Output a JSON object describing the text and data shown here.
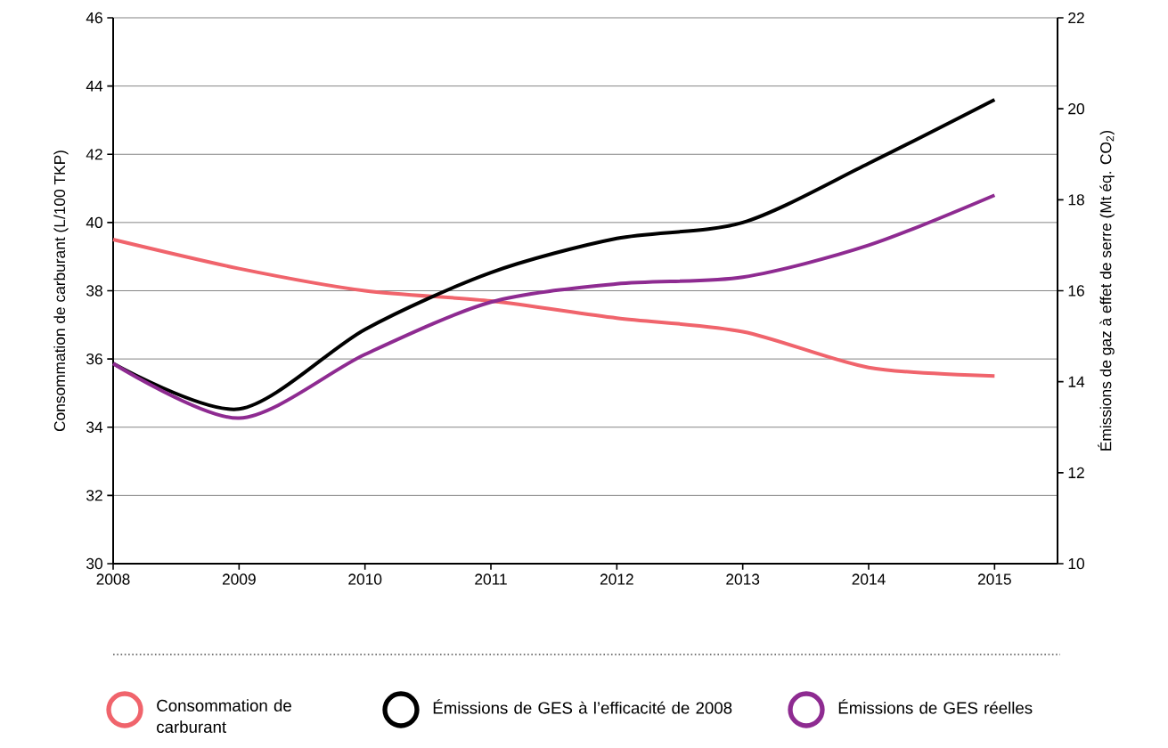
{
  "chart_data": {
    "type": "line",
    "ylabel": "Consommation de carburant (L/100 TKP)",
    "y2label": "Émissions de gaz à effet de serre (Mt éq. CO$_{2}$)",
    "x": [
      2008,
      2009,
      2010,
      2011,
      2012,
      2013,
      2014,
      2015
    ],
    "series": [
      {
        "name": "Consommation de carburant",
        "color": "#f0646c",
        "values": [
          39.5,
          38.65,
          38.0,
          37.7,
          37.2,
          36.8,
          35.75,
          35.5
        ]
      },
      {
        "name": "Émissions de GES à l’efficacité de 2008",
        "color": "#000000",
        "axis": "y2",
        "values": [
          14.4,
          13.4,
          15.15,
          16.4,
          17.15,
          17.5,
          18.8,
          20.2
        ]
      },
      {
        "name": "Émissions de GES réelles",
        "color": "#8e2b91",
        "axis": "y2",
        "values": [
          14.4,
          13.2,
          14.6,
          15.75,
          16.15,
          16.3,
          17.0,
          18.1
        ]
      }
    ],
    "xlim": [
      2008,
      2015.5
    ],
    "xticks": [
      2008,
      2009,
      2010,
      2011,
      2012,
      2013,
      2014,
      2015
    ],
    "ylim": [
      30,
      46
    ],
    "yticks": [
      30,
      32,
      34,
      36,
      38,
      40,
      42,
      44,
      46
    ],
    "y2lim": [
      10,
      22
    ],
    "y2ticks": [
      10,
      12,
      14,
      16,
      18,
      20,
      22
    ],
    "grid": "y",
    "legend": "bottom",
    "marker": "none",
    "line_style": "solid"
  }
}
